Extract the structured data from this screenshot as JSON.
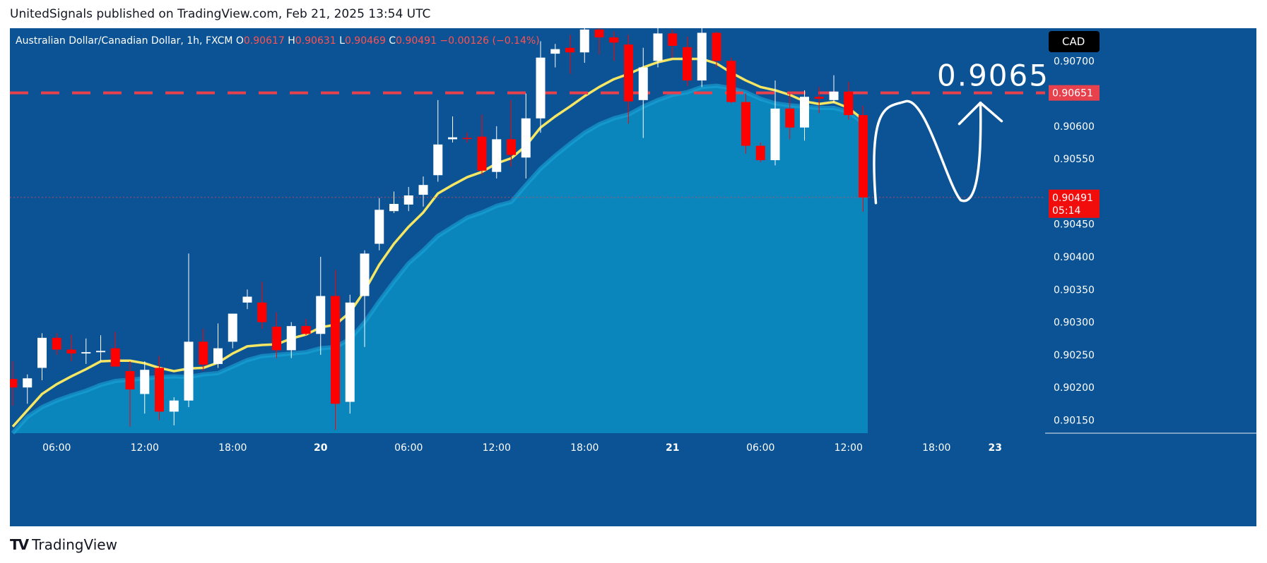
{
  "caption": "UnitedSignals published on TradingView.com, Feb 21, 2025 13:54 UTC",
  "brand": {
    "logo": "TV",
    "name": "TradingView"
  },
  "symbol_bar": {
    "title": "Australian Dollar/Canadian Dollar, 1h, FXCM",
    "o_label": "O",
    "o_value": "0.90617",
    "h_label": "H",
    "h_value": "0.90631",
    "l_label": "L",
    "l_value": "0.90469",
    "c_label": "C",
    "c_value": "0.90491",
    "change": "−0.00126 (−0.14%)"
  },
  "currency_badge": "CAD",
  "annotation_text": "0.9065",
  "level_label": "0.90651",
  "price_label": "0.90491",
  "countdown": "05:14",
  "colors": {
    "background": "#0b5394",
    "area": "#0a86bd",
    "area_top": "#1aa7d9",
    "ma": "#f5e663",
    "up": "#ffffff",
    "down": "#ff0000",
    "level": "#e8414e",
    "price_line": "#e8414e",
    "axis_text": "#ffffff"
  },
  "chart_data": {
    "type": "candlestick",
    "title": "Australian Dollar/Canadian Dollar, 1h, FXCM",
    "xlabel": "",
    "ylabel": "",
    "ylim": [
      0.9013,
      0.9075
    ],
    "y_ticks": [
      "0.90150",
      "0.90200",
      "0.90250",
      "0.90300",
      "0.90350",
      "0.90400",
      "0.90450",
      "0.90550",
      "0.90600",
      "0.90700"
    ],
    "x_ticks": [
      {
        "label": "06:00",
        "bar": 3
      },
      {
        "label": "12:00",
        "bar": 9
      },
      {
        "label": "18:00",
        "bar": 15
      },
      {
        "label": "20",
        "bar": 21
      },
      {
        "label": "06:00",
        "bar": 27
      },
      {
        "label": "12:00",
        "bar": 33
      },
      {
        "label": "18:00",
        "bar": 39
      },
      {
        "label": "21",
        "bar": 45
      },
      {
        "label": "06:00",
        "bar": 51
      },
      {
        "label": "12:00",
        "bar": 57
      },
      {
        "label": "18:00",
        "bar": 63
      },
      {
        "label": "23",
        "bar": 67
      }
    ],
    "candles": [
      {
        "o": 0.90213,
        "h": 0.9024,
        "l": 0.90172,
        "c": 0.902
      },
      {
        "o": 0.902,
        "h": 0.9022,
        "l": 0.90175,
        "c": 0.90214
      },
      {
        "o": 0.9023,
        "h": 0.90283,
        "l": 0.90211,
        "c": 0.90276
      },
      {
        "o": 0.90276,
        "h": 0.90283,
        "l": 0.9025,
        "c": 0.90258
      },
      {
        "o": 0.90258,
        "h": 0.90281,
        "l": 0.9024,
        "c": 0.90252
      },
      {
        "o": 0.90252,
        "h": 0.90275,
        "l": 0.90236,
        "c": 0.90254
      },
      {
        "o": 0.90254,
        "h": 0.9028,
        "l": 0.9024,
        "c": 0.90256
      },
      {
        "o": 0.9026,
        "h": 0.90285,
        "l": 0.90237,
        "c": 0.90232
      },
      {
        "o": 0.90225,
        "h": 0.9024,
        "l": 0.9014,
        "c": 0.90197
      },
      {
        "o": 0.9019,
        "h": 0.9024,
        "l": 0.9016,
        "c": 0.90227
      },
      {
        "o": 0.9023,
        "h": 0.90248,
        "l": 0.9015,
        "c": 0.90163
      },
      {
        "o": 0.90163,
        "h": 0.90185,
        "l": 0.90142,
        "c": 0.9018
      },
      {
        "o": 0.9018,
        "h": 0.90405,
        "l": 0.9017,
        "c": 0.9027
      },
      {
        "o": 0.9027,
        "h": 0.9029,
        "l": 0.90225,
        "c": 0.90235
      },
      {
        "o": 0.90236,
        "h": 0.90298,
        "l": 0.9023,
        "c": 0.9026
      },
      {
        "o": 0.9027,
        "h": 0.90313,
        "l": 0.9026,
        "c": 0.90313
      },
      {
        "o": 0.9033,
        "h": 0.9035,
        "l": 0.9032,
        "c": 0.90339
      },
      {
        "o": 0.9033,
        "h": 0.90362,
        "l": 0.9029,
        "c": 0.903
      },
      {
        "o": 0.90293,
        "h": 0.90315,
        "l": 0.90245,
        "c": 0.90257
      },
      {
        "o": 0.90257,
        "h": 0.903,
        "l": 0.90245,
        "c": 0.90294
      },
      {
        "o": 0.90294,
        "h": 0.90305,
        "l": 0.9028,
        "c": 0.90282
      },
      {
        "o": 0.90282,
        "h": 0.904,
        "l": 0.9025,
        "c": 0.9034
      },
      {
        "o": 0.9034,
        "h": 0.9038,
        "l": 0.90135,
        "c": 0.90175
      },
      {
        "o": 0.90178,
        "h": 0.90342,
        "l": 0.9016,
        "c": 0.9033
      },
      {
        "o": 0.9034,
        "h": 0.9041,
        "l": 0.90262,
        "c": 0.90405
      },
      {
        "o": 0.9042,
        "h": 0.9049,
        "l": 0.9041,
        "c": 0.90472
      },
      {
        "o": 0.9047,
        "h": 0.905,
        "l": 0.90467,
        "c": 0.90481
      },
      {
        "o": 0.9048,
        "h": 0.90507,
        "l": 0.9047,
        "c": 0.90494
      },
      {
        "o": 0.90495,
        "h": 0.90523,
        "l": 0.90477,
        "c": 0.9051
      },
      {
        "o": 0.90525,
        "h": 0.9064,
        "l": 0.90515,
        "c": 0.90572
      },
      {
        "o": 0.9058,
        "h": 0.90615,
        "l": 0.90575,
        "c": 0.90583
      },
      {
        "o": 0.90582,
        "h": 0.9059,
        "l": 0.90575,
        "c": 0.90581
      },
      {
        "o": 0.90584,
        "h": 0.90618,
        "l": 0.90525,
        "c": 0.90532
      },
      {
        "o": 0.9053,
        "h": 0.906,
        "l": 0.9052,
        "c": 0.9058
      },
      {
        "o": 0.9058,
        "h": 0.9064,
        "l": 0.90538,
        "c": 0.90556
      },
      {
        "o": 0.90552,
        "h": 0.9065,
        "l": 0.9052,
        "c": 0.90612
      },
      {
        "o": 0.90612,
        "h": 0.9073,
        "l": 0.9059,
        "c": 0.90705
      },
      {
        "o": 0.90711,
        "h": 0.90726,
        "l": 0.9069,
        "c": 0.90718
      },
      {
        "o": 0.9072,
        "h": 0.9074,
        "l": 0.9068,
        "c": 0.90713
      },
      {
        "o": 0.90713,
        "h": 0.90752,
        "l": 0.90697,
        "c": 0.90748
      },
      {
        "o": 0.90748,
        "h": 0.90753,
        "l": 0.9071,
        "c": 0.90736
      },
      {
        "o": 0.90736,
        "h": 0.90745,
        "l": 0.907,
        "c": 0.90728
      },
      {
        "o": 0.90725,
        "h": 0.9074,
        "l": 0.90604,
        "c": 0.90638
      },
      {
        "o": 0.9064,
        "h": 0.9072,
        "l": 0.90582,
        "c": 0.9069
      },
      {
        "o": 0.907,
        "h": 0.90775,
        "l": 0.9069,
        "c": 0.90742
      },
      {
        "o": 0.90742,
        "h": 0.90748,
        "l": 0.90705,
        "c": 0.90723
      },
      {
        "o": 0.90721,
        "h": 0.90737,
        "l": 0.90662,
        "c": 0.9067
      },
      {
        "o": 0.9067,
        "h": 0.90775,
        "l": 0.9066,
        "c": 0.90743
      },
      {
        "o": 0.90743,
        "h": 0.90745,
        "l": 0.9069,
        "c": 0.907
      },
      {
        "o": 0.907,
        "h": 0.90705,
        "l": 0.90635,
        "c": 0.90637
      },
      {
        "o": 0.90637,
        "h": 0.9065,
        "l": 0.90558,
        "c": 0.9057
      },
      {
        "o": 0.9057,
        "h": 0.90575,
        "l": 0.90545,
        "c": 0.90548
      },
      {
        "o": 0.90548,
        "h": 0.9067,
        "l": 0.9054,
        "c": 0.90627
      },
      {
        "o": 0.90627,
        "h": 0.9065,
        "l": 0.9058,
        "c": 0.90598
      },
      {
        "o": 0.90598,
        "h": 0.90655,
        "l": 0.90578,
        "c": 0.90645
      },
      {
        "o": 0.90645,
        "h": 0.9066,
        "l": 0.9062,
        "c": 0.90642
      },
      {
        "o": 0.9064,
        "h": 0.90678,
        "l": 0.90635,
        "c": 0.90653
      },
      {
        "o": 0.90653,
        "h": 0.90668,
        "l": 0.9061,
        "c": 0.90617
      },
      {
        "o": 0.90617,
        "h": 0.90631,
        "l": 0.90469,
        "c": 0.90491
      }
    ],
    "ma": [
      0.9014,
      0.90165,
      0.9019,
      0.90205,
      0.90217,
      0.90228,
      0.9024,
      0.90241,
      0.90241,
      0.90237,
      0.9023,
      0.90225,
      0.90229,
      0.9023,
      0.90238,
      0.90252,
      0.90263,
      0.90265,
      0.90266,
      0.90275,
      0.90281,
      0.90292,
      0.90296,
      0.90315,
      0.90348,
      0.90388,
      0.9042,
      0.90446,
      0.90468,
      0.90497,
      0.9051,
      0.90522,
      0.9053,
      0.90543,
      0.90551,
      0.9057,
      0.90598,
      0.90615,
      0.9063,
      0.90646,
      0.9066,
      0.90672,
      0.9068,
      0.9069,
      0.90698,
      0.90703,
      0.90703,
      0.90703,
      0.90696,
      0.90682,
      0.9067,
      0.9066,
      0.90655,
      0.90648,
      0.90638,
      0.90634,
      0.90637,
      0.90628,
      0.9061
    ],
    "area": [
      0.9013,
      0.90155,
      0.9017,
      0.9018,
      0.90188,
      0.90195,
      0.90204,
      0.9021,
      0.90212,
      0.90214,
      0.90216,
      0.90217,
      0.90216,
      0.9022,
      0.90222,
      0.90232,
      0.90242,
      0.90248,
      0.9025,
      0.90252,
      0.90254,
      0.9026,
      0.90262,
      0.90274,
      0.903,
      0.90332,
      0.90362,
      0.9039,
      0.9041,
      0.90432,
      0.90446,
      0.9046,
      0.90468,
      0.90478,
      0.90484,
      0.9051,
      0.90535,
      0.90555,
      0.90573,
      0.9059,
      0.90603,
      0.90612,
      0.90618,
      0.9063,
      0.9064,
      0.90648,
      0.90652,
      0.9066,
      0.90662,
      0.90658,
      0.90652,
      0.90642,
      0.90635,
      0.90632,
      0.9063,
      0.90628,
      0.90628,
      0.90622,
      0.90605
    ],
    "horizontal_level": 0.90651,
    "current_price": 0.90491
  }
}
